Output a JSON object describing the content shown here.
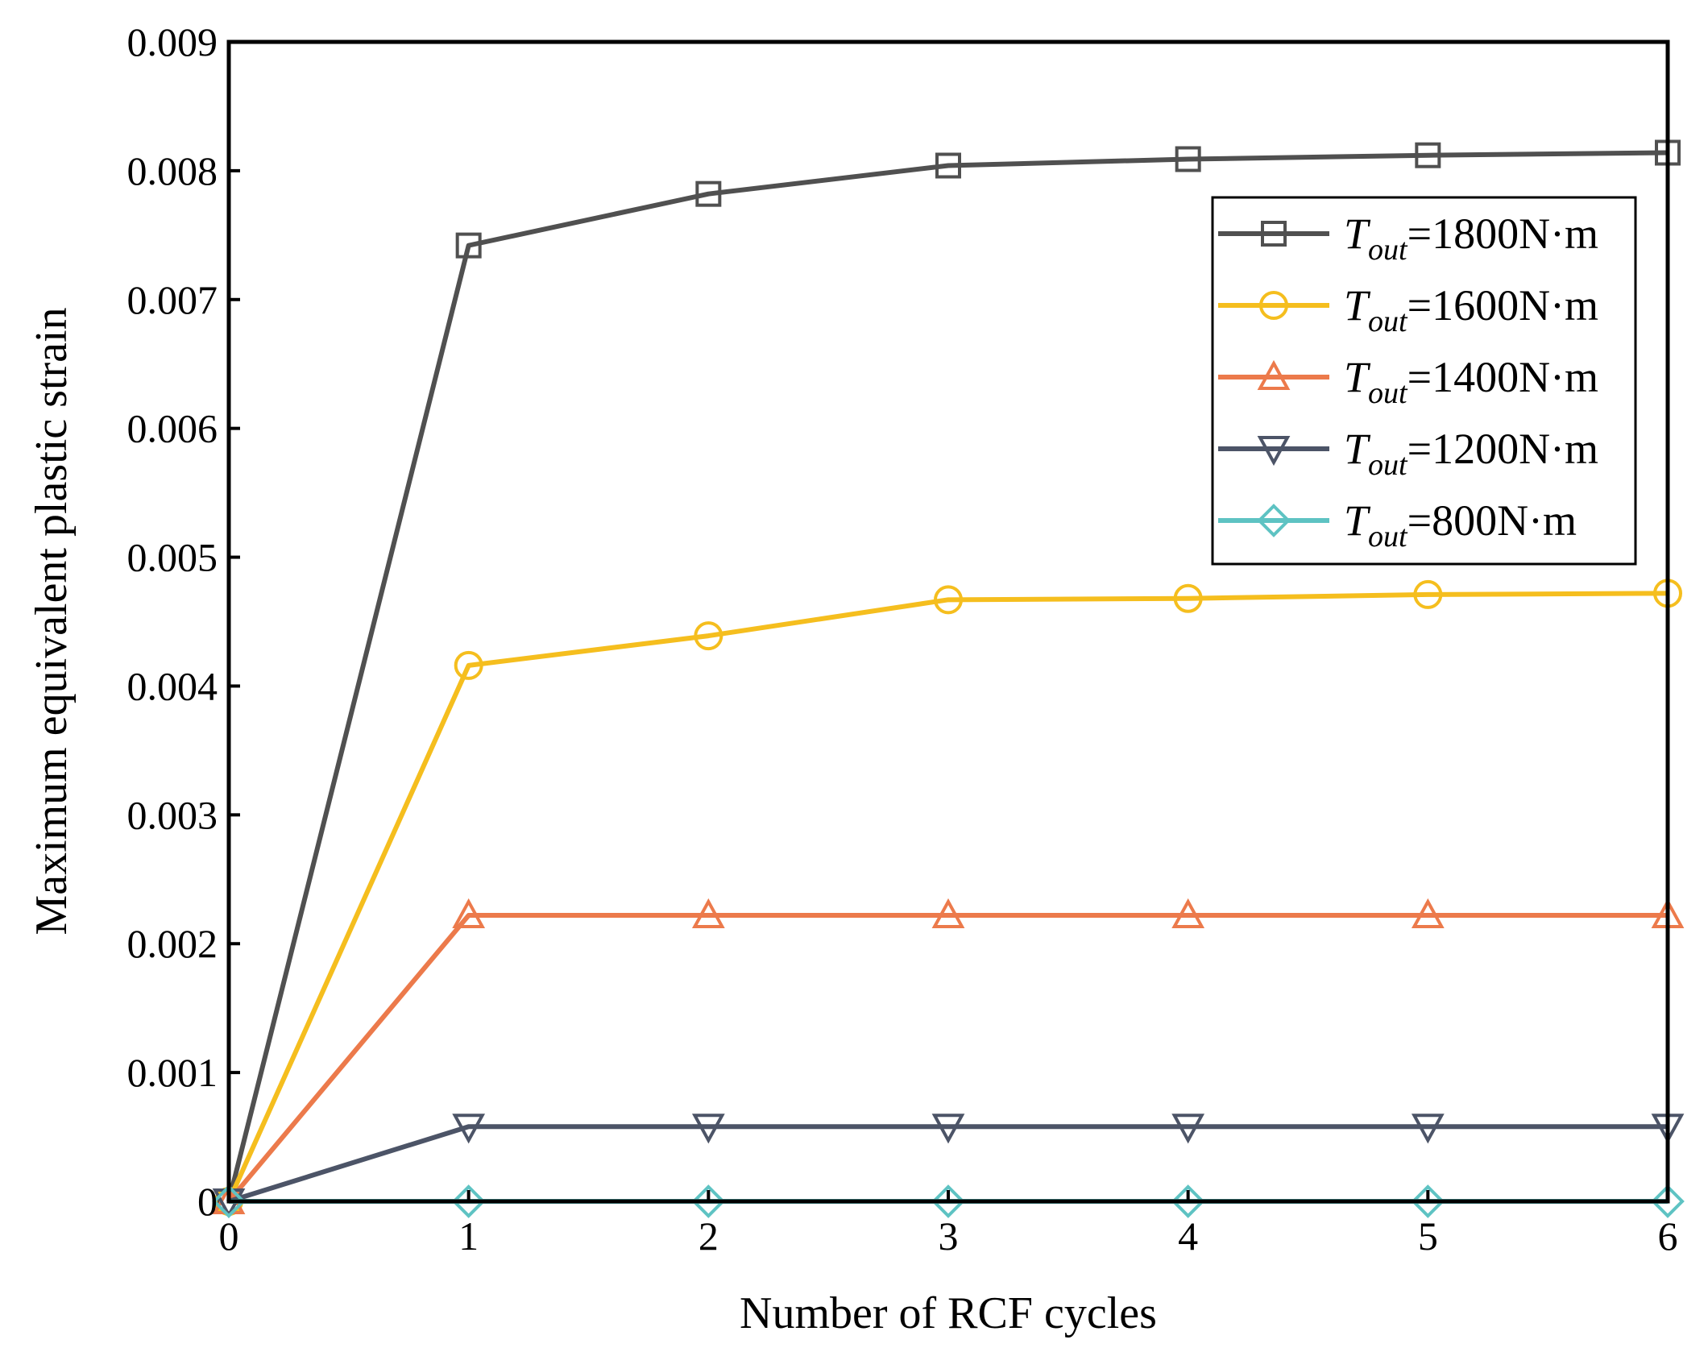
{
  "chart_data": {
    "type": "line",
    "title": "",
    "xlabel": "Number of RCF cycles",
    "ylabel": "Maximum equivalent plastic strain",
    "x": [
      0,
      1,
      2,
      3,
      4,
      5,
      6
    ],
    "xlim": [
      0,
      6
    ],
    "ylim": [
      0,
      0.009
    ],
    "xticks": [
      "0",
      "1",
      "2",
      "3",
      "4",
      "5",
      "6"
    ],
    "yticks": [
      {
        "value": 0,
        "label": "0"
      },
      {
        "value": 0.001,
        "label": "0.001"
      },
      {
        "value": 0.002,
        "label": "0.002"
      },
      {
        "value": 0.003,
        "label": "0.003"
      },
      {
        "value": 0.004,
        "label": "0.004"
      },
      {
        "value": 0.005,
        "label": "0.005"
      },
      {
        "value": 0.006,
        "label": "0.006"
      },
      {
        "value": 0.007,
        "label": "0.007"
      },
      {
        "value": 0.008,
        "label": "0.008"
      },
      {
        "value": 0.009,
        "label": "0.009"
      }
    ],
    "grid": false,
    "legend_position": "top-right",
    "series": [
      {
        "name": "Tout=1800N·m",
        "symbol": "T",
        "subscript": "out",
        "suffix": "=1800N·m",
        "marker": "square",
        "color": "#505050",
        "values": [
          0,
          0.00742,
          0.00782,
          0.00804,
          0.00809,
          0.00812,
          0.00814
        ]
      },
      {
        "name": "Tout=1600N·m",
        "symbol": "T",
        "subscript": "out",
        "suffix": "=1600N·m",
        "marker": "circle",
        "color": "#F5BE1E",
        "values": [
          0,
          0.00416,
          0.00439,
          0.00467,
          0.00468,
          0.00471,
          0.00472
        ]
      },
      {
        "name": "Tout=1400N·m",
        "symbol": "T",
        "subscript": "out",
        "suffix": "=1400N·m",
        "marker": "triangle-up",
        "color": "#EC7A4B",
        "values": [
          0,
          0.00222,
          0.00222,
          0.00222,
          0.00222,
          0.00222,
          0.00222
        ]
      },
      {
        "name": "Tout=1200N·m",
        "symbol": "T",
        "subscript": "out",
        "suffix": "=1200N·m",
        "marker": "triangle-down",
        "color": "#4C5467",
        "values": [
          0,
          0.00058,
          0.00058,
          0.00058,
          0.00058,
          0.00058,
          0.00058
        ]
      },
      {
        "name": "Tout=800N·m",
        "symbol": "T",
        "subscript": "out",
        "suffix": "=800N·m",
        "marker": "diamond",
        "color": "#5EC3C3",
        "values": [
          0,
          0,
          0,
          0,
          0,
          0,
          0
        ]
      }
    ]
  }
}
